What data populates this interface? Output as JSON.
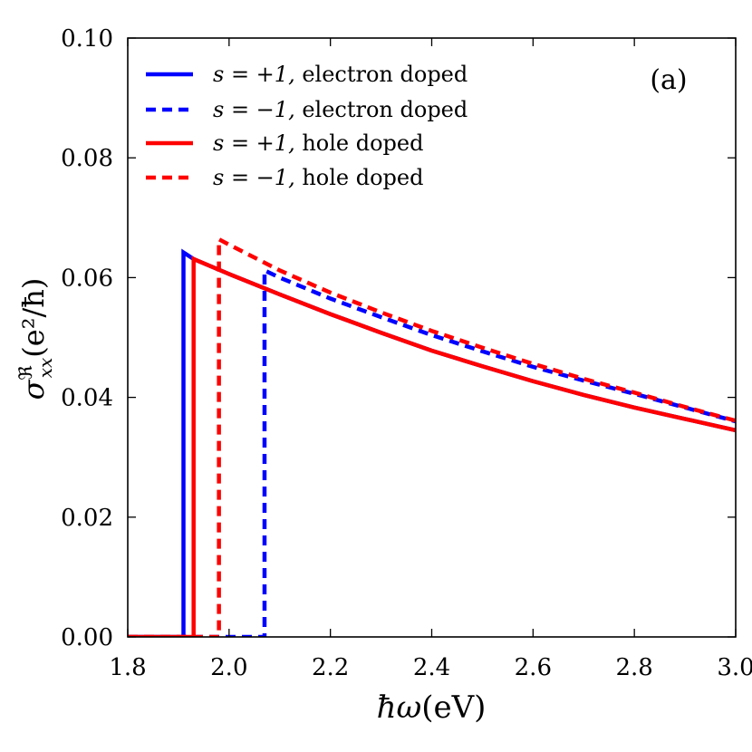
{
  "chart_data": {
    "type": "line",
    "panel_label": "(a)",
    "xlabel": {
      "hbar": "ħ",
      "omega": "ω",
      "unit": "(eV)"
    },
    "ylabel": {
      "sigma": "σ",
      "sup": "ℜ",
      "sub": "xx",
      "rest": "(e²/ħ)"
    },
    "xlim": [
      1.8,
      3.0
    ],
    "ylim": [
      0.0,
      0.1
    ],
    "x_ticks": [
      1.8,
      2.0,
      2.2,
      2.4,
      2.6,
      2.8,
      3.0
    ],
    "x_tick_labels": [
      "1.8",
      "2.0",
      "2.2",
      "2.4",
      "2.6",
      "2.8",
      "3.0"
    ],
    "y_ticks": [
      0.0,
      0.02,
      0.04,
      0.06,
      0.08,
      0.1
    ],
    "y_tick_labels": [
      "0.00",
      "0.02",
      "0.04",
      "0.06",
      "0.08",
      "0.10"
    ],
    "legend": {
      "position": "top-left",
      "entries": [
        {
          "math": "s = +1,",
          "text": "electron doped"
        },
        {
          "math": "s = −1,",
          "text": "electron doped"
        },
        {
          "math": "s = +1,",
          "text": "hole doped"
        },
        {
          "math": "s = −1,",
          "text": "hole doped"
        }
      ]
    },
    "series": [
      {
        "name": "s = +1, electron doped",
        "color": "#0000ff",
        "dash": "solid",
        "x": [
          1.8,
          1.91,
          1.91,
          1.93,
          2.0,
          2.1,
          2.2,
          2.3,
          2.4,
          2.5,
          2.6,
          2.7,
          2.8,
          2.9,
          3.0
        ],
        "y": [
          0.0,
          0.0,
          0.0642,
          0.0631,
          0.0606,
          0.0572,
          0.0539,
          0.0508,
          0.0478,
          0.0452,
          0.0427,
          0.0404,
          0.0383,
          0.0364,
          0.0345
        ]
      },
      {
        "name": "s = -1, electron doped",
        "color": "#0000ff",
        "dash": "dashed",
        "x": [
          1.8,
          2.07,
          2.07,
          2.1,
          2.2,
          2.3,
          2.4,
          2.5,
          2.6,
          2.7,
          2.8,
          2.9,
          3.0
        ],
        "y": [
          0.0,
          0.0,
          0.0612,
          0.06,
          0.0565,
          0.0534,
          0.0504,
          0.0477,
          0.0451,
          0.0428,
          0.0406,
          0.0383,
          0.036
        ]
      },
      {
        "name": "s = +1, hole doped",
        "color": "#ff0000",
        "dash": "solid",
        "x": [
          1.8,
          1.93,
          1.93,
          2.0,
          2.1,
          2.2,
          2.3,
          2.4,
          2.5,
          2.6,
          2.7,
          2.8,
          2.9,
          3.0
        ],
        "y": [
          0.0,
          0.0,
          0.0631,
          0.0606,
          0.0572,
          0.0539,
          0.0508,
          0.0478,
          0.0452,
          0.0427,
          0.0404,
          0.0383,
          0.0364,
          0.0345
        ]
      },
      {
        "name": "s = -1, hole doped",
        "color": "#ff0000",
        "dash": "dashed",
        "x": [
          1.8,
          1.98,
          1.98,
          2.0,
          2.1,
          2.2,
          2.3,
          2.4,
          2.5,
          2.6,
          2.7,
          2.8,
          2.9,
          3.0
        ],
        "y": [
          0.0,
          0.0,
          0.0664,
          0.0655,
          0.0612,
          0.0575,
          0.0542,
          0.0511,
          0.0483,
          0.0456,
          0.0431,
          0.0408,
          0.0384,
          0.0361
        ]
      }
    ]
  }
}
